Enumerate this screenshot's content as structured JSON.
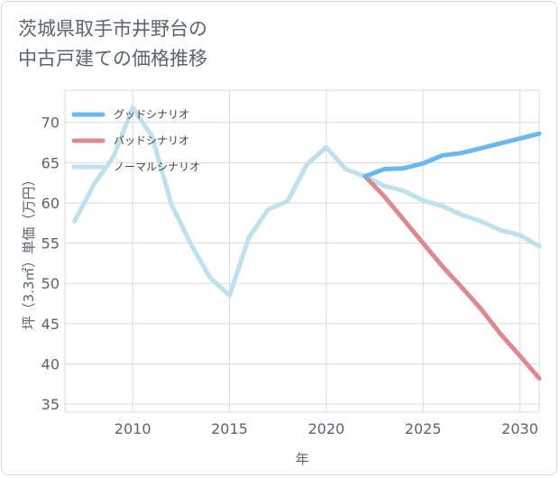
{
  "title_line1": "茨城県取手市井野台の",
  "title_line2": "中古戸建ての価格推移",
  "chart_data": {
    "type": "line",
    "xlabel": "年",
    "ylabel": "坪（3.3㎡）単価（万円）",
    "xlim": [
      2006.5,
      2031
    ],
    "ylim": [
      34,
      74
    ],
    "xticks": [
      2010,
      2015,
      2020,
      2025,
      2030
    ],
    "yticks": [
      35,
      40,
      45,
      50,
      55,
      60,
      65,
      70
    ],
    "legend_position": "top-left",
    "series": [
      {
        "name": "グッドシナリオ",
        "color": "#6bb8ec",
        "x": [
          2022,
          2023,
          2024,
          2025,
          2026,
          2027,
          2028,
          2029,
          2030,
          2031
        ],
        "y": [
          63.3,
          64.2,
          64.3,
          64.9,
          65.9,
          66.2,
          66.8,
          67.4,
          68.0,
          68.6
        ]
      },
      {
        "name": "バッドシナリオ",
        "color": "#dc8a92",
        "x": [
          2022,
          2023,
          2024,
          2025,
          2026,
          2027,
          2028,
          2029,
          2030,
          2031
        ],
        "y": [
          63.3,
          60.8,
          57.9,
          55.0,
          52.1,
          49.5,
          46.8,
          43.7,
          41.0,
          38.2
        ]
      },
      {
        "name": "ノーマルシナリオ",
        "color": "#bfe0ec",
        "x": [
          2007,
          2008,
          2009,
          2010,
          2011,
          2012,
          2013,
          2014,
          2015,
          2016,
          2017,
          2018,
          2019,
          2020,
          2021,
          2022,
          2023,
          2024,
          2025,
          2026,
          2027,
          2028,
          2029,
          2030,
          2031
        ],
        "y": [
          57.7,
          62.3,
          65.7,
          71.8,
          68.3,
          59.8,
          54.9,
          50.7,
          48.5,
          55.7,
          59.2,
          60.2,
          64.8,
          66.9,
          64.2,
          63.3,
          62.1,
          61.5,
          60.3,
          59.6,
          58.5,
          57.7,
          56.6,
          56.0,
          54.6
        ]
      }
    ]
  }
}
